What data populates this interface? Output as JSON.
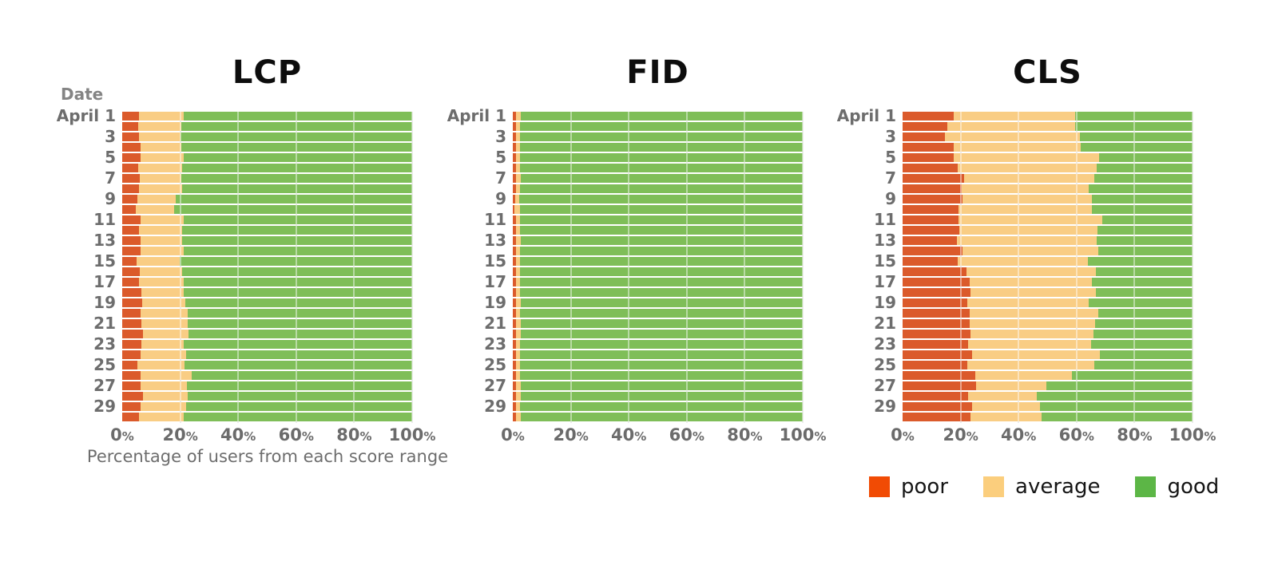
{
  "page": {
    "background": "#ffffff"
  },
  "legend": {
    "position": "bottom-right",
    "items": [
      {
        "label": "poor",
        "color": "#F14B04"
      },
      {
        "label": "average",
        "color": "#FBCE7D"
      },
      {
        "label": "good",
        "color": "#5CB646"
      }
    ]
  },
  "chart_data": [
    {
      "type": "bar",
      "orientation": "horizontal-stacked",
      "title": "LCP",
      "ylabel": "Date",
      "xlabel": "Percentage of users from each score range",
      "xlim": [
        0,
        100
      ],
      "xticks": [
        0,
        20,
        40,
        60,
        80,
        100
      ],
      "xtick_suffix": "%",
      "grid": "vertical-20pct",
      "row_labels": [
        "April 1",
        "",
        "3",
        "",
        "5",
        "",
        "7",
        "",
        "9",
        "",
        "11",
        "",
        "13",
        "",
        "15",
        "",
        "17",
        "",
        "19",
        "",
        "21",
        "",
        "23",
        "",
        "25",
        "",
        "27",
        "",
        "29",
        ""
      ],
      "series": [
        {
          "name": "poor",
          "color": "#DB5A2B",
          "values": [
            5.7,
            5.4,
            5.7,
            6.4,
            6.2,
            5.4,
            6.0,
            5.7,
            5.2,
            4.8,
            6.4,
            5.7,
            6.2,
            6.2,
            5.0,
            6.0,
            5.7,
            6.6,
            6.9,
            6.4,
            6.6,
            7.1,
            6.6,
            6.4,
            5.2,
            6.2,
            6.4,
            7.3,
            6.4,
            5.7
          ]
        },
        {
          "name": "average",
          "color": "#F9CD84",
          "values": [
            15.4,
            15.0,
            14.5,
            14.0,
            14.9,
            15.2,
            14.4,
            14.9,
            13.2,
            13.0,
            14.7,
            14.9,
            14.6,
            14.9,
            14.7,
            14.8,
            15.4,
            14.5,
            15.0,
            16.1,
            15.9,
            15.9,
            14.5,
            15.6,
            16.4,
            17.7,
            15.8,
            15.2,
            15.6,
            15.6
          ]
        },
        {
          "name": "good",
          "color": "#7FBE58",
          "values": [
            78.9,
            79.6,
            79.8,
            79.6,
            78.9,
            79.4,
            79.6,
            79.4,
            81.6,
            82.2,
            78.9,
            79.4,
            79.2,
            78.9,
            80.3,
            79.2,
            78.9,
            78.9,
            78.1,
            77.5,
            77.5,
            77.0,
            78.9,
            78.0,
            78.4,
            76.1,
            77.8,
            77.5,
            78.0,
            78.7
          ]
        }
      ]
    },
    {
      "type": "bar",
      "orientation": "horizontal-stacked",
      "title": "FID",
      "xlim": [
        0,
        100
      ],
      "xticks": [
        0,
        20,
        40,
        60,
        80,
        100
      ],
      "xtick_suffix": "%",
      "grid": "vertical-20pct",
      "row_labels": [
        "April 1",
        "",
        "3",
        "",
        "5",
        "",
        "7",
        "",
        "9",
        "",
        "11",
        "",
        "13",
        "",
        "15",
        "",
        "17",
        "",
        "19",
        "",
        "21",
        "",
        "23",
        "",
        "25",
        "",
        "27",
        "",
        "29",
        ""
      ],
      "series": [
        {
          "name": "poor",
          "color": "#DB5A2B",
          "values": [
            1.1,
            1.0,
            1.1,
            1.0,
            1.1,
            1.0,
            1.1,
            1.0,
            0.9,
            0.6,
            1.1,
            1.0,
            1.1,
            1.0,
            1.0,
            1.1,
            1.0,
            1.1,
            1.2,
            1.0,
            1.1,
            1.0,
            1.1,
            1.0,
            1.1,
            1.0,
            1.2,
            1.1,
            1.0,
            1.1
          ]
        },
        {
          "name": "average",
          "color": "#F9CD84",
          "values": [
            1.6,
            1.5,
            1.4,
            1.6,
            1.5,
            1.4,
            1.6,
            1.5,
            1.4,
            1.8,
            1.5,
            1.5,
            1.6,
            1.5,
            1.6,
            1.5,
            1.6,
            1.5,
            1.6,
            1.5,
            1.6,
            1.7,
            1.5,
            1.6,
            1.5,
            1.6,
            1.5,
            1.6,
            1.5,
            1.6
          ]
        },
        {
          "name": "good",
          "color": "#7FBE58",
          "values": [
            97.3,
            97.5,
            97.5,
            97.4,
            97.4,
            97.6,
            97.3,
            97.5,
            97.7,
            97.6,
            97.4,
            97.5,
            97.3,
            97.5,
            97.4,
            97.4,
            97.4,
            97.4,
            97.2,
            97.5,
            97.3,
            97.3,
            97.4,
            97.4,
            97.4,
            97.4,
            97.3,
            97.3,
            97.5,
            97.3
          ]
        }
      ]
    },
    {
      "type": "bar",
      "orientation": "horizontal-stacked",
      "title": "CLS",
      "xlim": [
        0,
        100
      ],
      "xticks": [
        0,
        20,
        40,
        60,
        80,
        100
      ],
      "xtick_suffix": "%",
      "grid": "vertical-20pct",
      "legend_position": "bottom",
      "row_labels": [
        "April 1",
        "",
        "3",
        "",
        "5",
        "",
        "7",
        "",
        "9",
        "",
        "11",
        "",
        "13",
        "",
        "15",
        "",
        "17",
        "",
        "19",
        "",
        "21",
        "",
        "23",
        "",
        "25",
        "",
        "27",
        "",
        "29",
        ""
      ],
      "series": [
        {
          "name": "poor",
          "color": "#DB5A2B",
          "values": [
            17.7,
            15.4,
            14.7,
            17.7,
            17.7,
            19.0,
            21.3,
            20.5,
            20.7,
            19.3,
            19.3,
            19.5,
            18.6,
            20.7,
            19.0,
            22.0,
            23.1,
            23.4,
            22.3,
            23.1,
            23.1,
            23.4,
            22.7,
            23.9,
            22.3,
            25.0,
            25.3,
            22.7,
            23.9,
            23.3
          ]
        },
        {
          "name": "average",
          "color": "#F9CD84",
          "values": [
            41.7,
            44.0,
            46.4,
            43.7,
            50.2,
            47.9,
            44.8,
            43.8,
            44.5,
            45.9,
            49.6,
            47.8,
            48.4,
            46.8,
            44.8,
            44.6,
            42.1,
            43.4,
            42.0,
            44.4,
            43.2,
            42.5,
            42.2,
            44.2,
            43.8,
            33.5,
            24.3,
            23.7,
            23.6,
            24.5
          ]
        },
        {
          "name": "good",
          "color": "#7FBE58",
          "values": [
            40.6,
            40.6,
            38.9,
            38.6,
            32.1,
            33.1,
            33.9,
            35.7,
            34.8,
            34.8,
            31.1,
            32.7,
            33.0,
            32.5,
            36.2,
            33.4,
            34.8,
            33.2,
            35.7,
            32.5,
            33.7,
            34.1,
            35.1,
            31.9,
            33.9,
            41.5,
            50.4,
            53.6,
            52.5,
            52.2
          ]
        }
      ]
    }
  ]
}
